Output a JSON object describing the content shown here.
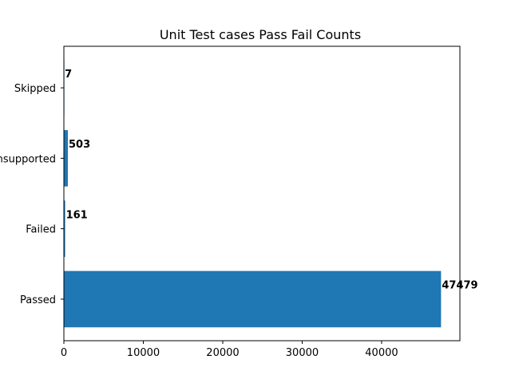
{
  "chart_data": {
    "type": "bar",
    "orientation": "horizontal",
    "title": "Unit Test cases Pass Fail Counts",
    "xlabel": "",
    "ylabel": "",
    "categories": [
      "Passed",
      "Failed",
      "Unsupported",
      "Skipped"
    ],
    "values": [
      47479,
      161,
      503,
      7
    ],
    "value_labels": [
      "47479",
      "161",
      "503",
      "7"
    ],
    "xlim": [
      0,
      49854
    ],
    "xticks": [
      0,
      10000,
      20000,
      30000,
      40000
    ],
    "xtick_labels": [
      "0",
      "10000",
      "20000",
      "30000",
      "40000"
    ],
    "bar_color": "#1f77b4",
    "grid": false,
    "legend": "none"
  }
}
